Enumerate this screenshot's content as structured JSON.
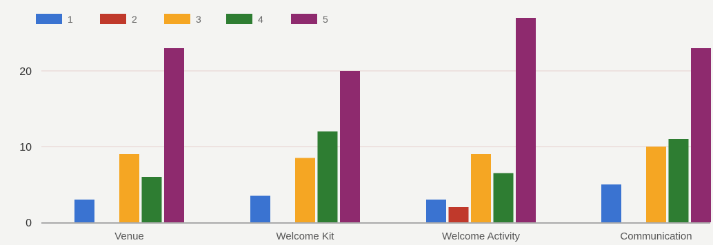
{
  "chart_data": {
    "type": "bar",
    "title": "",
    "xlabel": "",
    "ylabel": "",
    "categories": [
      "Venue",
      "Welcome Kit",
      "Welcome Activity",
      "Communication"
    ],
    "series": [
      {
        "name": "1",
        "color": "#3a73d1",
        "values": [
          3,
          3.5,
          3,
          5
        ]
      },
      {
        "name": "2",
        "color": "#c0392b",
        "values": [
          0,
          0,
          2,
          0
        ]
      },
      {
        "name": "3",
        "color": "#f5a623",
        "values": [
          9,
          8.5,
          9,
          10
        ]
      },
      {
        "name": "4",
        "color": "#2e7d32",
        "values": [
          6,
          12,
          6.5,
          11
        ]
      },
      {
        "name": "5",
        "color": "#8e2a6e",
        "values": [
          23,
          20,
          27,
          23
        ]
      }
    ],
    "ylim": [
      0,
      28
    ],
    "yticks": [
      0,
      10,
      20
    ],
    "grid": true,
    "legend": "top-left"
  }
}
